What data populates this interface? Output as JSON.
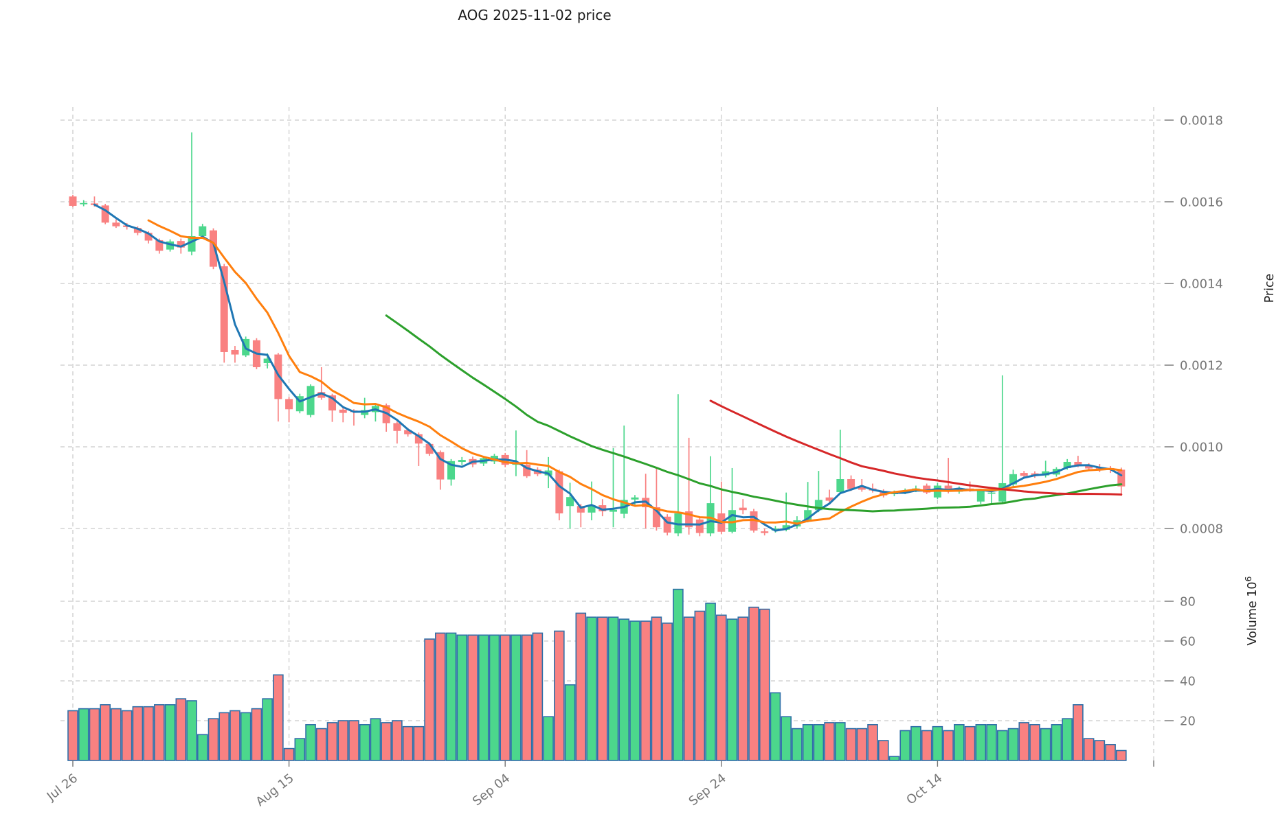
{
  "title": "AOG  2025-11-02  price",
  "axes": {
    "price_label": "Price",
    "volume_label": "Volume  10",
    "volume_label_sup": "6",
    "price_tick_labels": [
      "0.0018",
      "0.0016",
      "0.0014",
      "0.0012",
      "0.0010",
      "0.0008"
    ],
    "volume_tick_labels": [
      "80",
      "60",
      "40",
      "20"
    ],
    "x_tick_labels": [
      "Jul 26",
      "Aug 15",
      "Sep 04",
      "Sep 24",
      "Oct 14",
      ""
    ]
  },
  "colors": {
    "up": "#4cd78c",
    "down": "#f98181",
    "volume_edge": "#2f6fa8",
    "ma_short": "#1f77b4",
    "ma_mid": "#ff7f0e",
    "ma_long": "#2ca02c",
    "ma_longest": "#d62728",
    "grid": "#c9c9c9",
    "tick_text": "#757575",
    "title_text": "#1a1a1a",
    "axis_label_text": "#222222"
  },
  "chart_data": {
    "type": "candlestick+volume",
    "title": "AOG  2025-11-02  price",
    "ylabel_price": "Price",
    "ylabel_volume": "Volume 10^6",
    "volume_units": "millions",
    "price_tick_values": [
      0.0018,
      0.0016,
      0.0014,
      0.0012,
      0.001,
      0.0008
    ],
    "volume_tick_values": [
      80,
      60,
      40,
      20
    ],
    "x_tick_days": [
      0,
      20,
      40,
      60,
      80,
      100
    ],
    "x_tick_labels": [
      "Jul 26",
      "Aug 15",
      "Sep 04",
      "Sep 24",
      "Oct 14",
      ""
    ],
    "start_date": "2025-07-26",
    "grid": true,
    "legend": false,
    "ma_windows": [
      3,
      8,
      30,
      60
    ],
    "ohlcv": [
      [
        0.001613,
        0.001617,
        0.001587,
        0.00159,
        25
      ],
      [
        0.001594,
        0.001604,
        0.001589,
        0.001597,
        26
      ],
      [
        0.001596,
        0.001613,
        0.001588,
        0.001592,
        26
      ],
      [
        0.001591,
        0.001595,
        0.001545,
        0.001549,
        28
      ],
      [
        0.001549,
        0.001557,
        0.001536,
        0.00154,
        26
      ],
      [
        0.001542,
        0.001548,
        0.001532,
        0.001538,
        25
      ],
      [
        0.001536,
        0.00154,
        0.001518,
        0.001524,
        27
      ],
      [
        0.001524,
        0.001528,
        0.001498,
        0.001505,
        27
      ],
      [
        0.001506,
        0.00151,
        0.001473,
        0.00148,
        28
      ],
      [
        0.001483,
        0.001508,
        0.001478,
        0.001503,
        28
      ],
      [
        0.001504,
        0.00151,
        0.001473,
        0.001488,
        31
      ],
      [
        0.001478,
        0.00177,
        0.001469,
        0.001516,
        30
      ],
      [
        0.001516,
        0.001546,
        0.00151,
        0.00154,
        13
      ],
      [
        0.00153,
        0.001535,
        0.001435,
        0.001441,
        21
      ],
      [
        0.001442,
        0.001448,
        0.001206,
        0.001232,
        24
      ],
      [
        0.001237,
        0.001247,
        0.001206,
        0.001226,
        25
      ],
      [
        0.001224,
        0.00127,
        0.00122,
        0.001264,
        24
      ],
      [
        0.001261,
        0.001266,
        0.00119,
        0.001195,
        26
      ],
      [
        0.001205,
        0.001229,
        0.001192,
        0.001216,
        31
      ],
      [
        0.001226,
        0.00123,
        0.001062,
        0.001117,
        43
      ],
      [
        0.001117,
        0.001122,
        0.00106,
        0.001092,
        6
      ],
      [
        0.001087,
        0.00113,
        0.001082,
        0.001124,
        11
      ],
      [
        0.001078,
        0.001153,
        0.001072,
        0.001149,
        18
      ],
      [
        0.001134,
        0.001195,
        0.001115,
        0.00112,
        16
      ],
      [
        0.001126,
        0.00113,
        0.001061,
        0.001089,
        19
      ],
      [
        0.001091,
        0.001095,
        0.00106,
        0.001083,
        20
      ],
      [
        0.001089,
        0.001092,
        0.001052,
        0.001085,
        20
      ],
      [
        0.001078,
        0.00112,
        0.00107,
        0.00109,
        18
      ],
      [
        0.001085,
        0.001104,
        0.001062,
        0.0011,
        21
      ],
      [
        0.001102,
        0.001106,
        0.001037,
        0.001058,
        19
      ],
      [
        0.001058,
        0.001062,
        0.001008,
        0.001039,
        20
      ],
      [
        0.001041,
        0.001046,
        0.001025,
        0.001031,
        17
      ],
      [
        0.001031,
        0.001035,
        0.000953,
        0.001008,
        17
      ],
      [
        0.001007,
        0.001011,
        0.000978,
        0.000983,
        61
      ],
      [
        0.000987,
        0.000991,
        0.000895,
        0.00092,
        64
      ],
      [
        0.00092,
        0.00097,
        0.000905,
        0.000965,
        64
      ],
      [
        0.000963,
        0.000975,
        0.000955,
        0.000968,
        63
      ],
      [
        0.00097,
        0.000976,
        0.00095,
        0.000957,
        63
      ],
      [
        0.000959,
        0.000977,
        0.000953,
        0.000972,
        63
      ],
      [
        0.000964,
        0.000983,
        0.000958,
        0.000978,
        63
      ],
      [
        0.00098,
        0.000985,
        0.00095,
        0.000956,
        63
      ],
      [
        0.000956,
        0.00104,
        0.000928,
        0.00096,
        63
      ],
      [
        0.000956,
        0.000992,
        0.000924,
        0.000928,
        63
      ],
      [
        0.000944,
        0.00095,
        0.000928,
        0.000933,
        64
      ],
      [
        0.00093,
        0.000975,
        0.000899,
        0.000942,
        22
      ],
      [
        0.00094,
        0.000944,
        0.00082,
        0.000837,
        65
      ],
      [
        0.000855,
        0.000912,
        0.0008,
        0.000877,
        38
      ],
      [
        0.000855,
        0.00086,
        0.000803,
        0.000839,
        74
      ],
      [
        0.000839,
        0.000915,
        0.00082,
        0.000857,
        72
      ],
      [
        0.000857,
        0.000872,
        0.00083,
        0.000842,
        72
      ],
      [
        0.000841,
        0.000997,
        0.000803,
        0.000846,
        72
      ],
      [
        0.000836,
        0.001052,
        0.000825,
        0.00087,
        71
      ],
      [
        0.000871,
        0.000882,
        0.000858,
        0.000876,
        70
      ],
      [
        0.000875,
        0.000934,
        0.0008,
        0.000852,
        70
      ],
      [
        0.000852,
        0.000946,
        0.000795,
        0.000803,
        72
      ],
      [
        0.000829,
        0.000835,
        0.000783,
        0.00079,
        69
      ],
      [
        0.000788,
        0.001129,
        0.000781,
        0.000837,
        86
      ],
      [
        0.000842,
        0.001022,
        0.000785,
        0.000803,
        72
      ],
      [
        0.000822,
        0.000826,
        0.000781,
        0.000789,
        75
      ],
      [
        0.000788,
        0.000977,
        0.000781,
        0.000862,
        79
      ],
      [
        0.000837,
        0.000915,
        0.000786,
        0.000792,
        73
      ],
      [
        0.000792,
        0.000948,
        0.000788,
        0.000845,
        71
      ],
      [
        0.000851,
        0.000872,
        0.000835,
        0.000845,
        72
      ],
      [
        0.000842,
        0.000848,
        0.00079,
        0.000795,
        77
      ],
      [
        0.000793,
        0.0008,
        0.000783,
        0.000789,
        76
      ],
      [
        0.000795,
        0.000806,
        0.00079,
        0.0008,
        34
      ],
      [
        0.000797,
        0.000888,
        0.000793,
        0.000808,
        22
      ],
      [
        0.000805,
        0.00083,
        0.0008,
        0.00082,
        16
      ],
      [
        0.00082,
        0.000914,
        0.000815,
        0.000845,
        18
      ],
      [
        0.000845,
        0.000941,
        0.00084,
        0.00087,
        18
      ],
      [
        0.000876,
        0.000895,
        0.000862,
        0.000868,
        19
      ],
      [
        0.000889,
        0.001042,
        0.000884,
        0.000921,
        19
      ],
      [
        0.000921,
        0.00093,
        0.000892,
        0.000897,
        16
      ],
      [
        0.000904,
        0.000921,
        0.00089,
        0.000895,
        16
      ],
      [
        0.000898,
        0.00091,
        0.000888,
        0.000893,
        18
      ],
      [
        0.000892,
        0.000896,
        0.000876,
        0.000881,
        10
      ],
      [
        0.000884,
        0.000893,
        0.000879,
        0.000888,
        2
      ],
      [
        0.000888,
        0.000898,
        0.000884,
        0.000893,
        15
      ],
      [
        0.000893,
        0.000905,
        0.000889,
        0.000898,
        17
      ],
      [
        0.000905,
        0.00091,
        0.000884,
        0.000888,
        15
      ],
      [
        0.000876,
        0.000912,
        0.000872,
        0.000905,
        17
      ],
      [
        0.000905,
        0.000973,
        0.000886,
        0.00089,
        15
      ],
      [
        0.00089,
        0.000903,
        0.000885,
        0.000898,
        18
      ],
      [
        0.000898,
        0.000915,
        0.00089,
        0.000893,
        17
      ],
      [
        0.000866,
        0.000897,
        0.00086,
        0.000893,
        18
      ],
      [
        0.000885,
        0.00089,
        0.000862,
        0.000888,
        18
      ],
      [
        0.000866,
        0.001175,
        0.00086,
        0.000911,
        15
      ],
      [
        0.000908,
        0.000944,
        0.000902,
        0.000933,
        16
      ],
      [
        0.000936,
        0.000941,
        0.000922,
        0.000929,
        19
      ],
      [
        0.000935,
        0.00094,
        0.000924,
        0.000929,
        18
      ],
      [
        0.00093,
        0.000966,
        0.000925,
        0.00094,
        16
      ],
      [
        0.000932,
        0.00095,
        0.000927,
        0.000946,
        18
      ],
      [
        0.000948,
        0.00097,
        0.000944,
        0.000963,
        21
      ],
      [
        0.000963,
        0.000978,
        0.00095,
        0.000955,
        28
      ],
      [
        0.000955,
        0.00096,
        0.000942,
        0.000947,
        11
      ],
      [
        0.00095,
        0.000958,
        0.000938,
        0.000945,
        10
      ],
      [
        0.000948,
        0.000953,
        0.000936,
        0.000943,
        8
      ],
      [
        0.000944,
        0.000949,
        0.00088,
        0.000903,
        5
      ]
    ]
  }
}
